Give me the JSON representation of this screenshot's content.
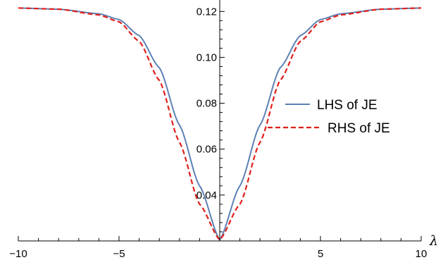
{
  "chart_data": {
    "type": "line",
    "title": "",
    "xlabel": "λ",
    "ylabel": "",
    "xlim": [
      -10,
      10
    ],
    "ylim": [
      0.02,
      0.125
    ],
    "x_ticks": [
      {
        "value": -10,
        "label": "−10"
      },
      {
        "value": -5,
        "label": "−5"
      },
      {
        "value": 5,
        "label": "5"
      },
      {
        "value": 10,
        "label": "10"
      }
    ],
    "y_ticks": [
      {
        "value": 0.04,
        "label": "0.04"
      },
      {
        "value": 0.06,
        "label": "0.06"
      },
      {
        "value": 0.08,
        "label": "0.08"
      },
      {
        "value": 0.1,
        "label": "0.10"
      },
      {
        "value": 0.12,
        "label": "0.12"
      }
    ],
    "legend_position": "right",
    "grid": false,
    "series": [
      {
        "name": "LHS of JE",
        "color": "#5e81b5",
        "style": "solid",
        "x": [
          -10,
          -8,
          -6,
          -5,
          -4,
          -3,
          -2,
          -1,
          0,
          1,
          2,
          3,
          4,
          5,
          6,
          8,
          10
        ],
        "y": [
          0.1215,
          0.121,
          0.119,
          0.1165,
          0.1095,
          0.0955,
          0.0705,
          0.044,
          0.0205,
          0.044,
          0.0705,
          0.0955,
          0.1095,
          0.1165,
          0.119,
          0.121,
          0.1215
        ]
      },
      {
        "name": "RHS of JE",
        "color": "#e0201b",
        "style": "dashed",
        "x": [
          -10,
          -8,
          -6,
          -5,
          -4,
          -3,
          -2,
          -1,
          0,
          1,
          2,
          3,
          4,
          5,
          6,
          8,
          10
        ],
        "y": [
          0.1215,
          0.121,
          0.1185,
          0.1155,
          0.107,
          0.09,
          0.063,
          0.036,
          0.0205,
          0.036,
          0.063,
          0.09,
          0.107,
          0.1155,
          0.1185,
          0.121,
          0.1215
        ]
      }
    ]
  }
}
